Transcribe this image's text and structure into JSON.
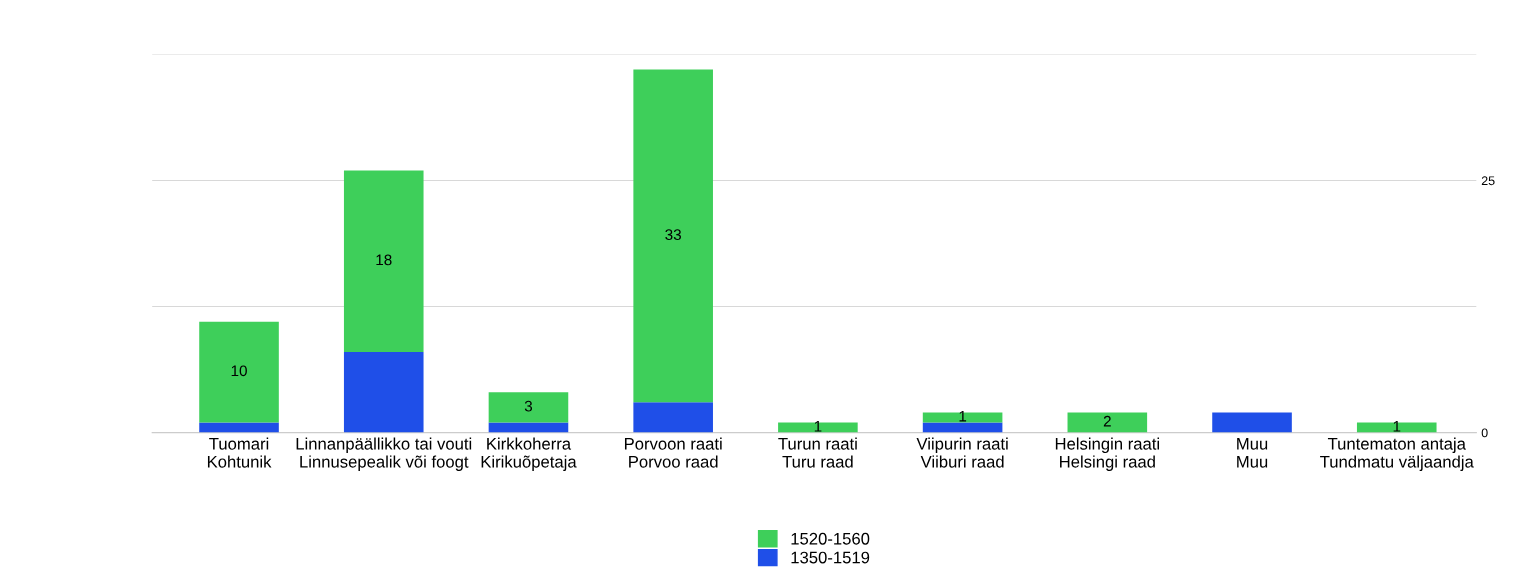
{
  "chart_data": {
    "type": "bar",
    "stacked": true,
    "categories": [
      "Tuomari\nKohtunik",
      "Linnanpäällikko tai vouti\nLinnusepealik või foogt",
      "Kirkkoherra\nKirikuõpetaja",
      "Porvoon raati\nPorvoo raad",
      "Turun raati\nTuru raad",
      "Viipurin raati\nViiburi raad",
      "Helsingin raati\nHelsingi raad",
      "Muu\nMuu",
      "Tuntematon antaja\nTundmatu väljaandja"
    ],
    "series": [
      {
        "name": "1350-1519",
        "color": "#1f4fe8",
        "values": [
          1,
          8,
          1,
          3,
          0,
          1,
          0,
          2,
          0
        ]
      },
      {
        "name": "1520-1560",
        "color": "#3ecf5a",
        "values": [
          10,
          18,
          3,
          33,
          1,
          1,
          2,
          0,
          1
        ],
        "value_labels": [
          "10",
          "18",
          "3",
          "33",
          "1",
          "1",
          "2",
          null,
          "1"
        ]
      }
    ],
    "ylim": [
      0,
      37.5
    ],
    "yticks": [
      0,
      {
        "value": 12.5,
        "label": null
      },
      25,
      {
        "value": 37.5,
        "label": null
      }
    ],
    "grid": "y",
    "legend": "bottom"
  }
}
